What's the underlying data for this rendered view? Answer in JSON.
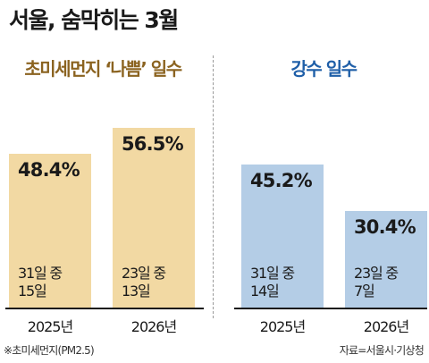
{
  "title": "서울, 숨막히는 3월",
  "footnote": "※초미세먼지(PM2.5)",
  "source": "자료=서울시·기상청",
  "colors": {
    "dust_bar": "#f2d9a3",
    "dust_title": "#8b6320",
    "rain_bar": "#b4cde6",
    "rain_title": "#1f5fa8"
  },
  "chart_data": [
    {
      "type": "bar",
      "title": "초미세먼지 ‘나쁨’ 일수",
      "categories": [
        "2025년",
        "2026년"
      ],
      "values": [
        48.4,
        56.5
      ],
      "value_labels": [
        "48.4%",
        "56.5%"
      ],
      "annotations": [
        {
          "line1": "31일 중",
          "line2": "15일"
        },
        {
          "line1": "23일 중",
          "line2": "13일"
        }
      ],
      "xlabel": "",
      "ylabel": "",
      "grid": false
    },
    {
      "type": "bar",
      "title": "강수 일수",
      "categories": [
        "2025년",
        "2026년"
      ],
      "values": [
        45.2,
        30.4
      ],
      "value_labels": [
        "45.2%",
        "30.4%"
      ],
      "annotations": [
        {
          "line1": "31일 중",
          "line2": "14일"
        },
        {
          "line1": "23일 중",
          "line2": "7일"
        }
      ],
      "xlabel": "",
      "ylabel": "",
      "grid": false
    }
  ]
}
